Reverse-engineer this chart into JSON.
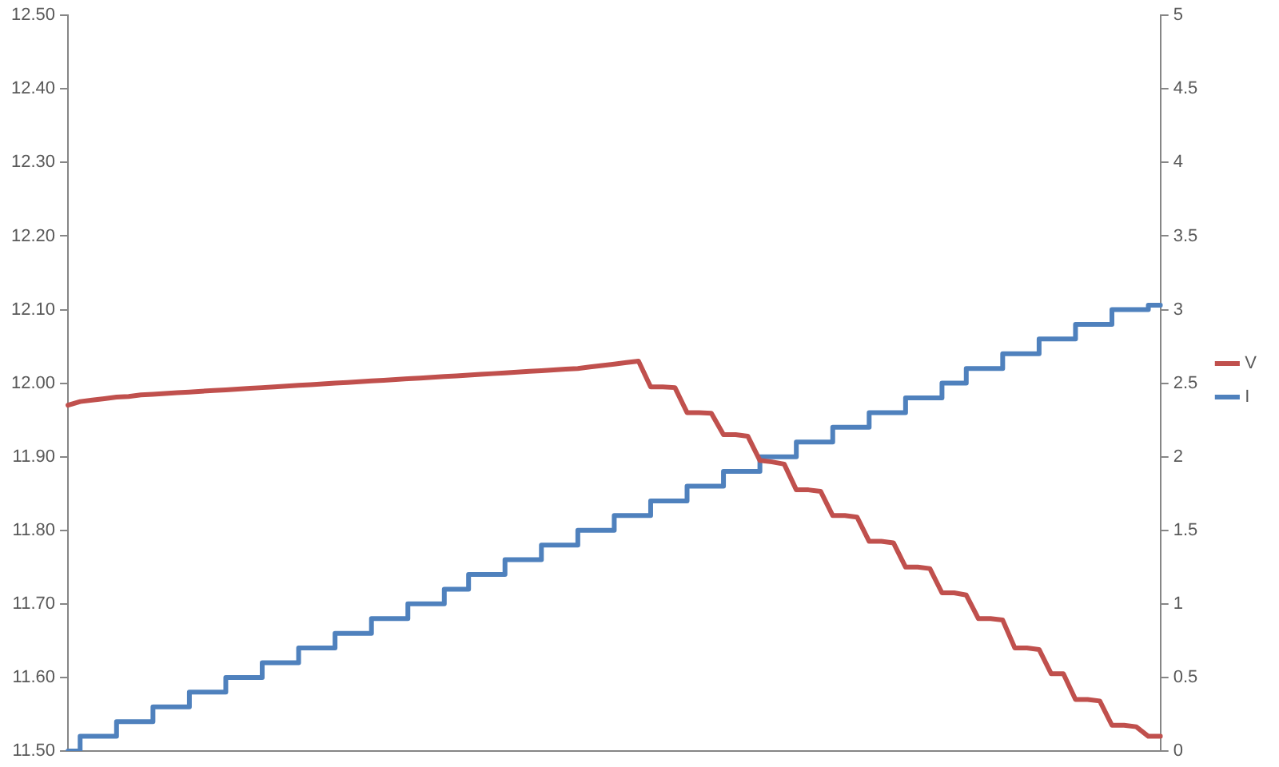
{
  "chart_data": {
    "type": "line",
    "categories": [
      null,
      null,
      null,
      null,
      null,
      null,
      null,
      null,
      null,
      null,
      null,
      null,
      null,
      null,
      null,
      null,
      null,
      null,
      null,
      null,
      null,
      null,
      null,
      null,
      null,
      null,
      null,
      null,
      null,
      null,
      null,
      null,
      null,
      null,
      null,
      null,
      null,
      null,
      null,
      null,
      null,
      null,
      null,
      null,
      null,
      null,
      null,
      null,
      null,
      null,
      null,
      null,
      null,
      null,
      null,
      null,
      null,
      null,
      null,
      null,
      null,
      null,
      null,
      null,
      null,
      null,
      null,
      null,
      null,
      null,
      null,
      null,
      null,
      null,
      null,
      null,
      null,
      null,
      null,
      null,
      null,
      null,
      null,
      null,
      null,
      null,
      null,
      null,
      null,
      null,
      null
    ],
    "ylim": [
      11.5,
      12.5
    ],
    "yticks": [
      {
        "value": 11.5,
        "label": "11.50"
      },
      {
        "value": 11.6,
        "label": "11.60"
      },
      {
        "value": 11.7,
        "label": "11.70"
      },
      {
        "value": 11.8,
        "label": "11.80"
      },
      {
        "value": 11.9,
        "label": "11.90"
      },
      {
        "value": 12.0,
        "label": "12.00"
      },
      {
        "value": 12.1,
        "label": "12.10"
      },
      {
        "value": 12.2,
        "label": "12.20"
      },
      {
        "value": 12.3,
        "label": "12.30"
      },
      {
        "value": 12.4,
        "label": "12.40"
      },
      {
        "value": 12.5,
        "label": "12.50"
      }
    ],
    "y2lim": [
      0,
      5
    ],
    "y2ticks": [
      0,
      0.5,
      1,
      1.5,
      2,
      2.5,
      3,
      3.5,
      4,
      4.5,
      5
    ],
    "grid": false,
    "legend": "right",
    "marker": "none",
    "line_style": "solid",
    "series": [
      {
        "name": "V",
        "color": "#c0504d",
        "values": [
          11.97,
          11.975,
          11.977,
          11.979,
          11.981,
          11.982,
          11.984,
          11.985,
          11.986,
          11.987,
          11.988,
          11.989,
          11.99,
          11.991,
          11.992,
          11.993,
          11.994,
          11.995,
          11.996,
          11.997,
          11.998,
          11.999,
          12.0,
          12.001,
          12.002,
          12.003,
          12.004,
          12.005,
          12.006,
          12.007,
          12.008,
          12.009,
          12.01,
          12.011,
          12.012,
          12.013,
          12.014,
          12.015,
          12.016,
          12.017,
          12.018,
          12.019,
          12.02,
          12.022,
          12.024,
          12.026,
          12.028,
          12.03,
          11.995,
          11.995,
          11.994,
          11.96,
          11.96,
          11.959,
          11.93,
          11.93,
          11.928,
          11.895,
          11.893,
          11.89,
          11.855,
          11.855,
          11.853,
          11.82,
          11.82,
          11.818,
          11.785,
          11.785,
          11.783,
          11.75,
          11.75,
          11.748,
          11.715,
          11.715,
          11.712,
          11.68,
          11.68,
          11.678,
          11.64,
          11.64,
          11.638,
          11.605,
          11.605,
          11.57,
          11.57,
          11.568,
          11.535,
          11.535,
          11.533,
          11.52,
          11.52
        ]
      },
      {
        "name": "I",
        "color": "#4f81bd",
        "type": "step",
        "axis": "y2",
        "values": [
          0,
          0.1,
          0.1,
          0.1,
          0.2,
          0.2,
          0.2,
          0.3,
          0.3,
          0.3,
          0.4,
          0.4,
          0.4,
          0.5,
          0.5,
          0.5,
          0.6,
          0.6,
          0.6,
          0.7,
          0.7,
          0.7,
          0.8,
          0.8,
          0.8,
          0.9,
          0.9,
          0.9,
          1.0,
          1.0,
          1.0,
          1.1,
          1.1,
          1.2,
          1.2,
          1.2,
          1.3,
          1.3,
          1.3,
          1.4,
          1.4,
          1.4,
          1.5,
          1.5,
          1.5,
          1.6,
          1.6,
          1.6,
          1.7,
          1.7,
          1.7,
          1.8,
          1.8,
          1.8,
          1.9,
          1.9,
          1.9,
          2.0,
          2.0,
          2.0,
          2.1,
          2.1,
          2.1,
          2.2,
          2.2,
          2.2,
          2.3,
          2.3,
          2.3,
          2.4,
          2.4,
          2.4,
          2.5,
          2.5,
          2.6,
          2.6,
          2.6,
          2.7,
          2.7,
          2.7,
          2.8,
          2.8,
          2.8,
          2.9,
          2.9,
          2.9,
          3.0,
          3.0,
          3.0,
          3.03,
          3.03
        ]
      }
    ]
  }
}
